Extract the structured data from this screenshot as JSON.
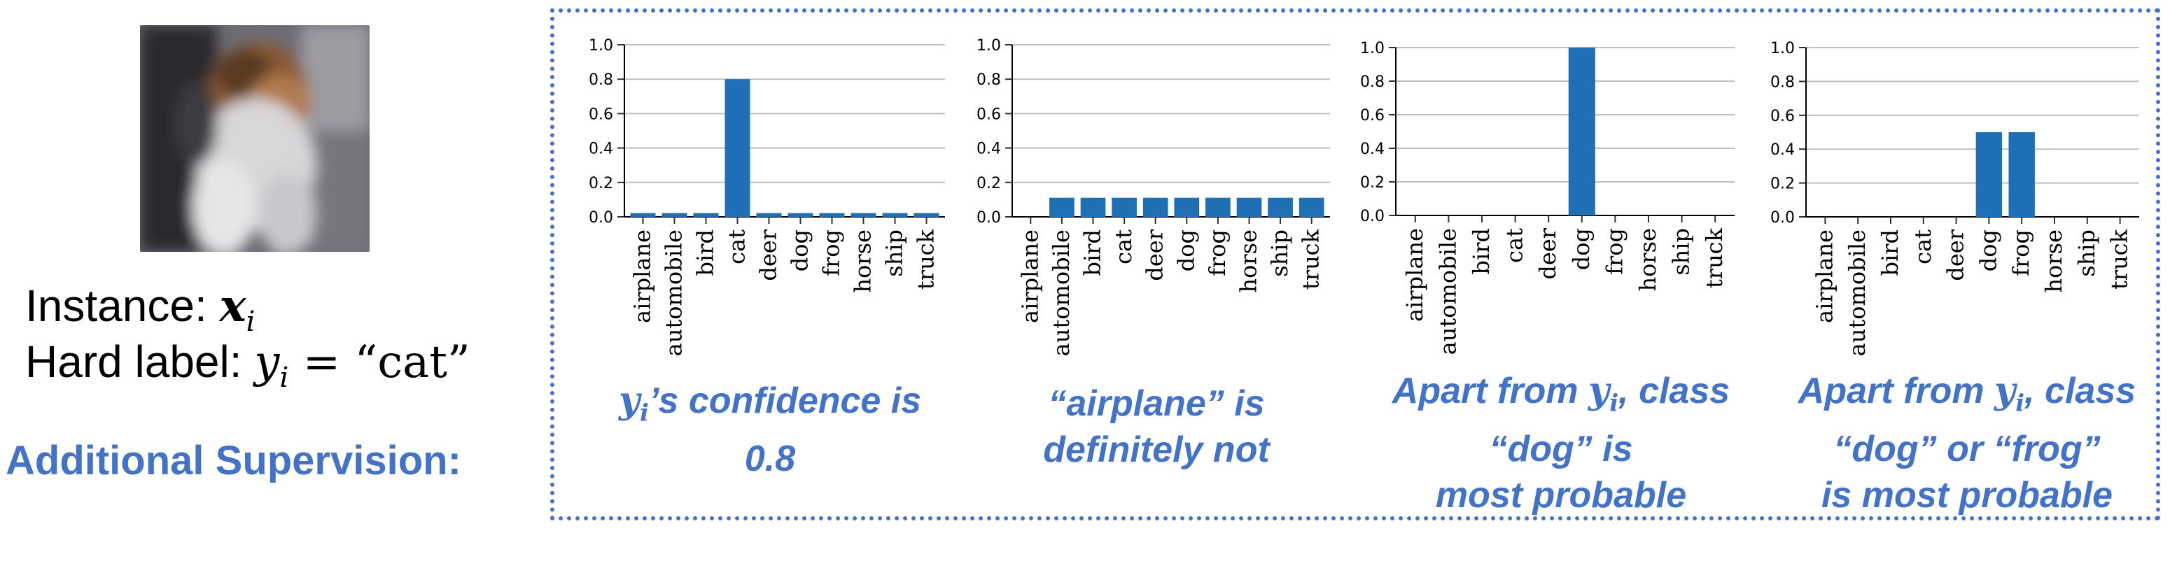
{
  "instance": {
    "line1_prefix": "Instance: ",
    "line1_math_bold": "x",
    "line1_math_sub": "i",
    "line2_prefix": "Hard label: ",
    "line2_math": "y",
    "line2_math_sub": "i",
    "line2_suffix": " = “cat”"
  },
  "additional_supervision": "Additional Supervision:",
  "colors": {
    "accent": "#4472c4",
    "bar": "#1f6fb4",
    "grid": "#bfbfbf"
  },
  "image_subject": "dog-photo-thumbnail",
  "captions": [
    {
      "lines": [
        "y",
        "i",
        "’s confidence is",
        "0.8"
      ]
    },
    {
      "lines": [
        "“airplane” is",
        "definitely not"
      ]
    },
    {
      "lines": [
        "Apart from ",
        "y",
        "i",
        ", class",
        "“dog” is",
        "most probable"
      ]
    },
    {
      "lines": [
        "Apart from ",
        "y",
        "i",
        ", class",
        "“dog” or “frog”",
        "is most probable"
      ]
    }
  ],
  "chart_data": [
    {
      "type": "bar",
      "categories": [
        "airplane",
        "automobile",
        "bird",
        "cat",
        "deer",
        "dog",
        "frog",
        "horse",
        "ship",
        "truck"
      ],
      "values": [
        0.022,
        0.022,
        0.022,
        0.8,
        0.022,
        0.022,
        0.022,
        0.022,
        0.022,
        0.022
      ],
      "ylim": [
        0,
        1.0
      ],
      "yticks": [
        "0.0",
        "0.2",
        "0.4",
        "0.6",
        "0.8",
        "1.0"
      ],
      "grid": true
    },
    {
      "type": "bar",
      "categories": [
        "airplane",
        "automobile",
        "bird",
        "cat",
        "deer",
        "dog",
        "frog",
        "horse",
        "ship",
        "truck"
      ],
      "values": [
        0.0,
        0.111,
        0.111,
        0.111,
        0.111,
        0.111,
        0.111,
        0.111,
        0.111,
        0.111
      ],
      "ylim": [
        0,
        1.0
      ],
      "yticks": [
        "0.0",
        "0.2",
        "0.4",
        "0.6",
        "0.8",
        "1.0"
      ],
      "grid": true
    },
    {
      "type": "bar",
      "categories": [
        "airplane",
        "automobile",
        "bird",
        "cat",
        "deer",
        "dog",
        "frog",
        "horse",
        "ship",
        "truck"
      ],
      "values": [
        0,
        0,
        0,
        0,
        0,
        1.0,
        0,
        0,
        0,
        0
      ],
      "ylim": [
        0,
        1.0
      ],
      "yticks": [
        "0.0",
        "0.2",
        "0.4",
        "0.6",
        "0.8",
        "1.0"
      ],
      "grid": true
    },
    {
      "type": "bar",
      "categories": [
        "airplane",
        "automobile",
        "bird",
        "cat",
        "deer",
        "dog",
        "frog",
        "horse",
        "ship",
        "truck"
      ],
      "values": [
        0,
        0,
        0,
        0,
        0,
        0.5,
        0.5,
        0,
        0,
        0
      ],
      "ylim": [
        0,
        1.0
      ],
      "yticks": [
        "0.0",
        "0.2",
        "0.4",
        "0.6",
        "0.8",
        "1.0"
      ],
      "grid": true
    }
  ]
}
